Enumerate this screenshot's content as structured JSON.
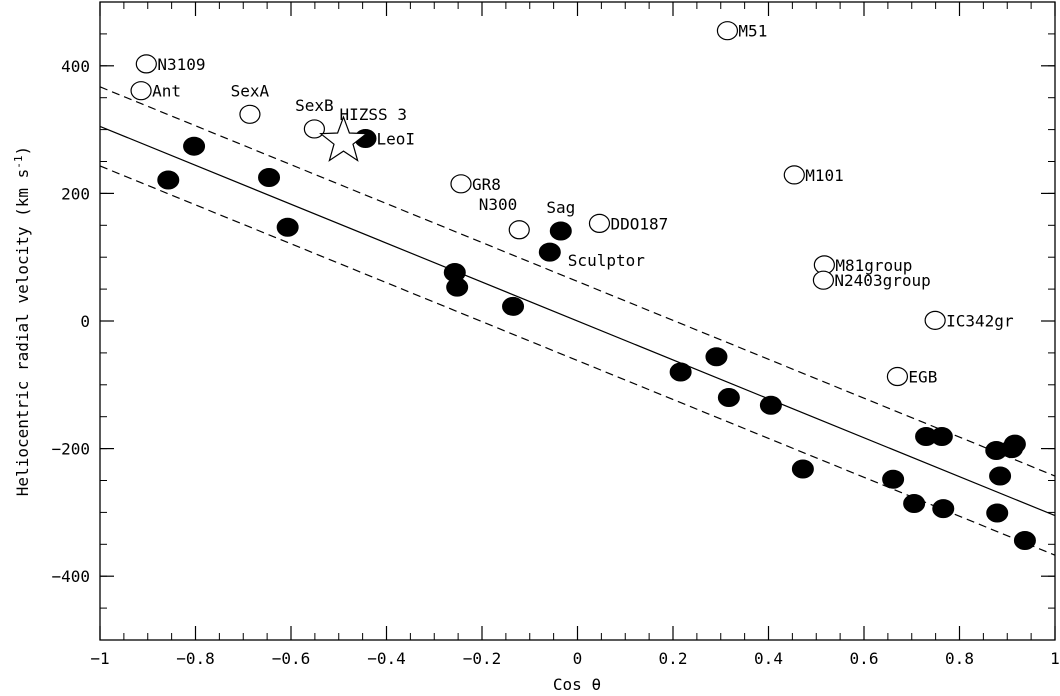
{
  "chart_data": {
    "type": "scatter",
    "title": "",
    "xlabel": "Cos θ",
    "ylabel_parts": [
      "Heliocentric radial velocity (km s",
      "-1",
      ")"
    ],
    "xlim": [
      -1,
      1
    ],
    "ylim": [
      -500,
      500
    ],
    "xticks": [
      -1,
      -0.8,
      -0.6,
      -0.4,
      -0.2,
      0,
      0.2,
      0.4,
      0.6,
      0.8,
      1
    ],
    "xtick_labels": [
      "−1",
      "−0.8",
      "−0.6",
      "−0.4",
      "−0.2",
      "0",
      "0.2",
      "0.4",
      "0.6",
      "0.8",
      "1"
    ],
    "yticks": [
      -400,
      -200,
      0,
      200,
      400
    ],
    "ytick_labels": [
      "−400",
      "−200",
      "0",
      "200",
      "400"
    ],
    "grid": false,
    "fit_line": {
      "style": "solid",
      "slope": -305,
      "intercept": 0
    },
    "envelope_lines": [
      {
        "style": "dashed",
        "slope": -305,
        "intercept": 62
      },
      {
        "style": "dashed",
        "slope": -305,
        "intercept": -62
      }
    ],
    "filled_points": [
      {
        "x": -0.857,
        "y": 221
      },
      {
        "x": -0.803,
        "y": 274
      },
      {
        "x": -0.646,
        "y": 225
      },
      {
        "x": -0.607,
        "y": 147
      },
      {
        "x": -0.444,
        "y": 286
      },
      {
        "x": -0.257,
        "y": 76
      },
      {
        "x": -0.252,
        "y": 53
      },
      {
        "x": -0.135,
        "y": 23
      },
      {
        "x": -0.058,
        "y": 108
      },
      {
        "x": -0.035,
        "y": 141
      },
      {
        "x": 0.216,
        "y": -80
      },
      {
        "x": 0.291,
        "y": -56
      },
      {
        "x": 0.317,
        "y": -120
      },
      {
        "x": 0.405,
        "y": -132
      },
      {
        "x": 0.472,
        "y": -232
      },
      {
        "x": 0.661,
        "y": -248
      },
      {
        "x": 0.705,
        "y": -286
      },
      {
        "x": 0.73,
        "y": -181
      },
      {
        "x": 0.763,
        "y": -181
      },
      {
        "x": 0.766,
        "y": -294
      },
      {
        "x": 0.877,
        "y": -203
      },
      {
        "x": 0.879,
        "y": -301
      },
      {
        "x": 0.885,
        "y": -243
      },
      {
        "x": 0.91,
        "y": -200
      },
      {
        "x": 0.916,
        "y": -193
      },
      {
        "x": 0.937,
        "y": -344
      }
    ],
    "open_points": [
      {
        "label": "N3109",
        "x": -0.903,
        "y": 403,
        "label_pos": "right"
      },
      {
        "label": "Ant",
        "x": -0.914,
        "y": 361,
        "label_pos": "right"
      },
      {
        "label": "SexA",
        "x": -0.686,
        "y": 324,
        "label_pos": "above"
      },
      {
        "label": "SexB",
        "x": -0.551,
        "y": 301,
        "label_pos": "above"
      },
      {
        "label": "GR8",
        "x": -0.244,
        "y": 215,
        "label_pos": "right"
      },
      {
        "label": "N300",
        "x": -0.122,
        "y": 143,
        "label_pos": "above-left"
      },
      {
        "label": "DDO187",
        "x": 0.046,
        "y": 153,
        "label_pos": "right"
      },
      {
        "label": "M51",
        "x": 0.314,
        "y": 455,
        "label_pos": "right"
      },
      {
        "label": "M101",
        "x": 0.454,
        "y": 229,
        "label_pos": "right"
      },
      {
        "label": "M81group",
        "x": 0.517,
        "y": 88,
        "label_pos": "right"
      },
      {
        "label": "N2403group",
        "x": 0.515,
        "y": 64,
        "label_pos": "right"
      },
      {
        "label": "IC342gr",
        "x": 0.749,
        "y": 1,
        "label_pos": "right"
      },
      {
        "label": "EGB",
        "x": 0.67,
        "y": -87,
        "label_pos": "right"
      }
    ],
    "text_labels": [
      {
        "label": "LeoI",
        "x": -0.444,
        "y": 286,
        "label_pos": "right"
      },
      {
        "label": "Sag",
        "x": -0.035,
        "y": 141,
        "label_pos": "above"
      },
      {
        "label": "Sculptor",
        "x": -0.058,
        "y": 108,
        "label_pos": "right-below"
      },
      {
        "label": "HIZSS 3",
        "x": -0.49,
        "y": 282,
        "label_pos": "above-right"
      }
    ],
    "star_points": [
      {
        "label": "HIZSS 3",
        "x": -0.49,
        "y": 282
      }
    ]
  }
}
